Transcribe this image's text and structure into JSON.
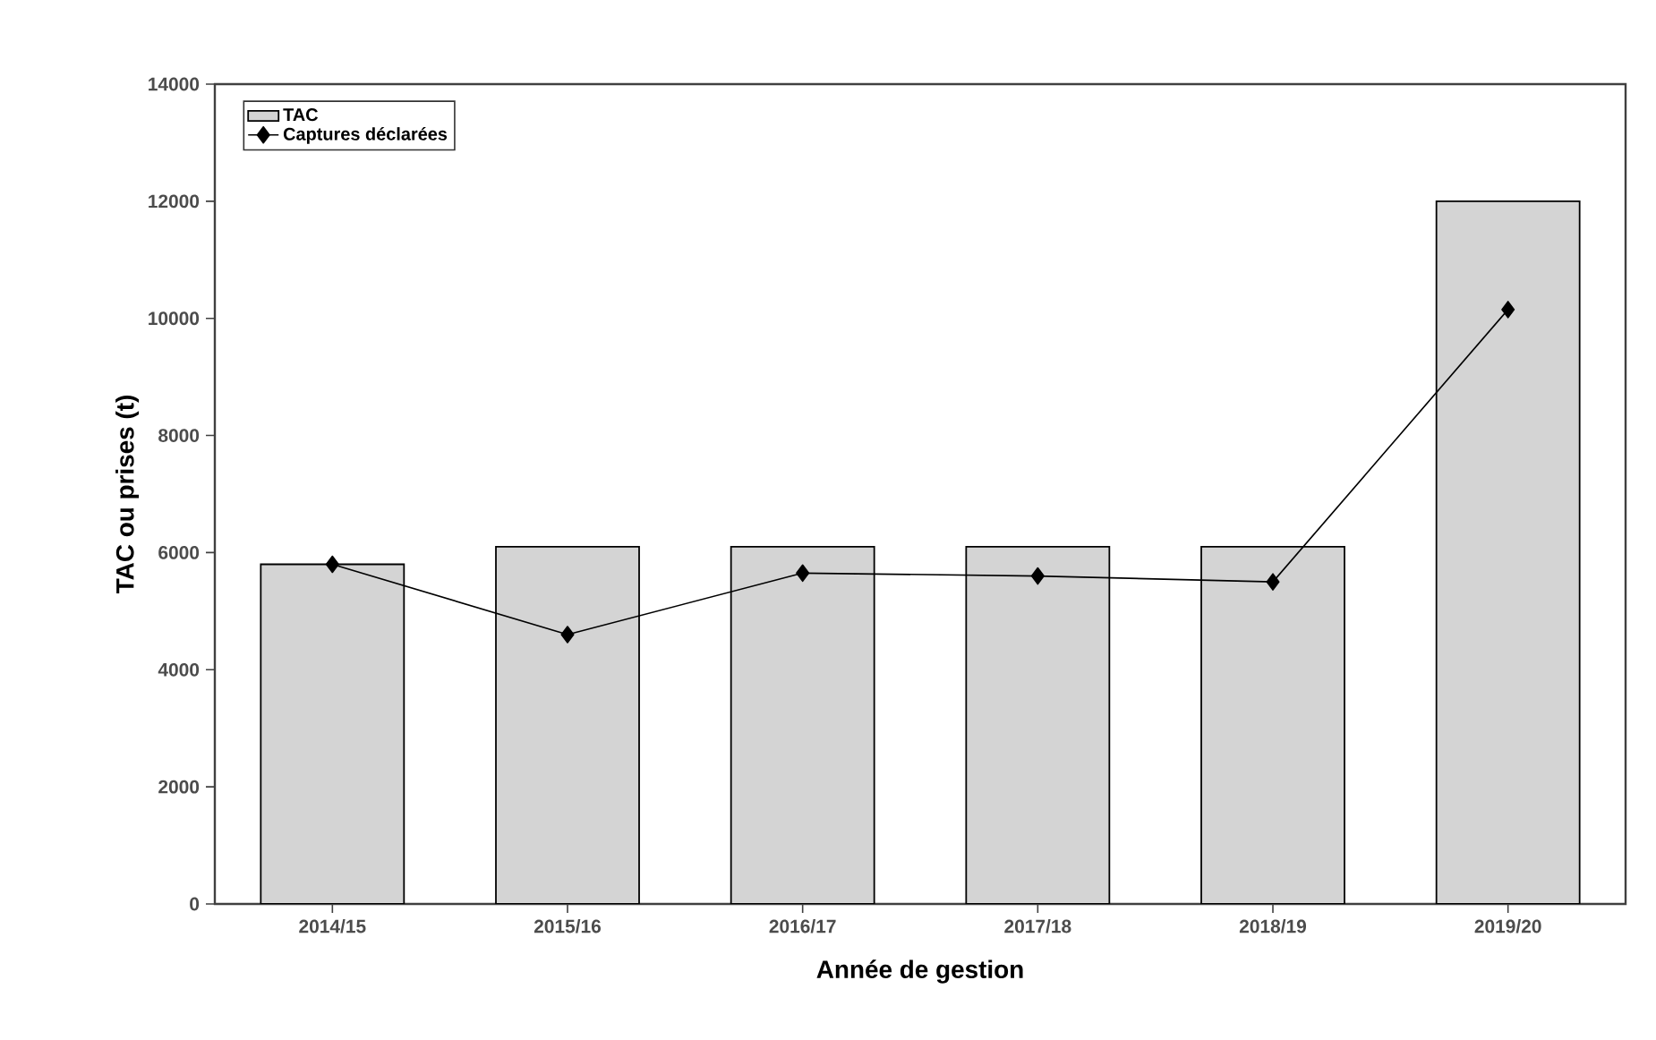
{
  "chart_data": {
    "type": "bar",
    "xlabel": "Année de gestion",
    "ylabel": "TAC ou prises (t)",
    "categories": [
      "2014/15",
      "2015/16",
      "2016/17",
      "2017/18",
      "2018/19",
      "2019/20"
    ],
    "series": [
      {
        "name": "TAC",
        "color": "#d4d4d4",
        "values": [
          5800,
          6100,
          6100,
          6100,
          6100,
          12000
        ]
      },
      {
        "name": "Captures déclarées",
        "type": "line",
        "marker": "diamond",
        "color": "#000000",
        "values": [
          5800,
          4600,
          5650,
          5600,
          5500,
          10150
        ]
      }
    ],
    "ylim": [
      0,
      14000
    ],
    "yticks": [
      0,
      2000,
      4000,
      6000,
      8000,
      10000,
      12000,
      14000
    ],
    "legend": "top left"
  }
}
